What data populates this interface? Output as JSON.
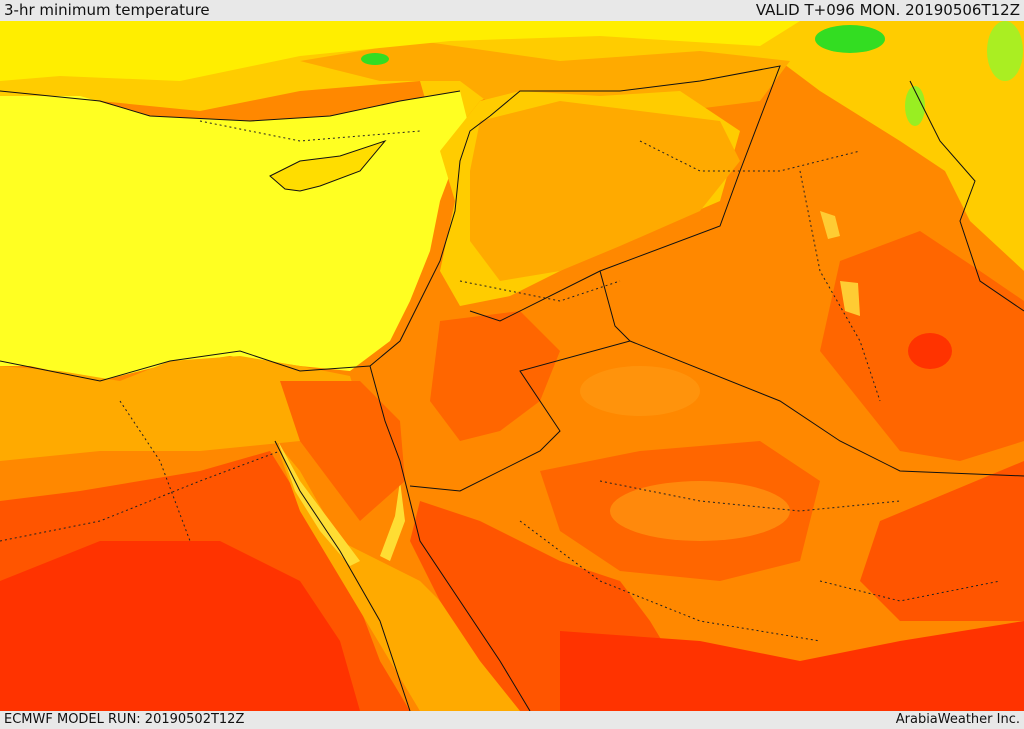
{
  "header": {
    "title": "3-hr minimum temperature",
    "valid": "VALID T+096 MON. 20190506T12Z"
  },
  "footer": {
    "model_run": "ECMWF MODEL RUN: 20190502T12Z",
    "credit": "ArabiaWeather Inc."
  },
  "map": {
    "field": "3-hr minimum temperature",
    "colors": {
      "green": "#33dd22",
      "light_yellow": "#ffff22",
      "yellow": "#ffee00",
      "gold": "#ffcc00",
      "orange_light": "#ffaa00",
      "orange": "#ff8800",
      "orange_red": "#ff6600",
      "red": "#ff3300",
      "border_line": "#111111"
    }
  }
}
